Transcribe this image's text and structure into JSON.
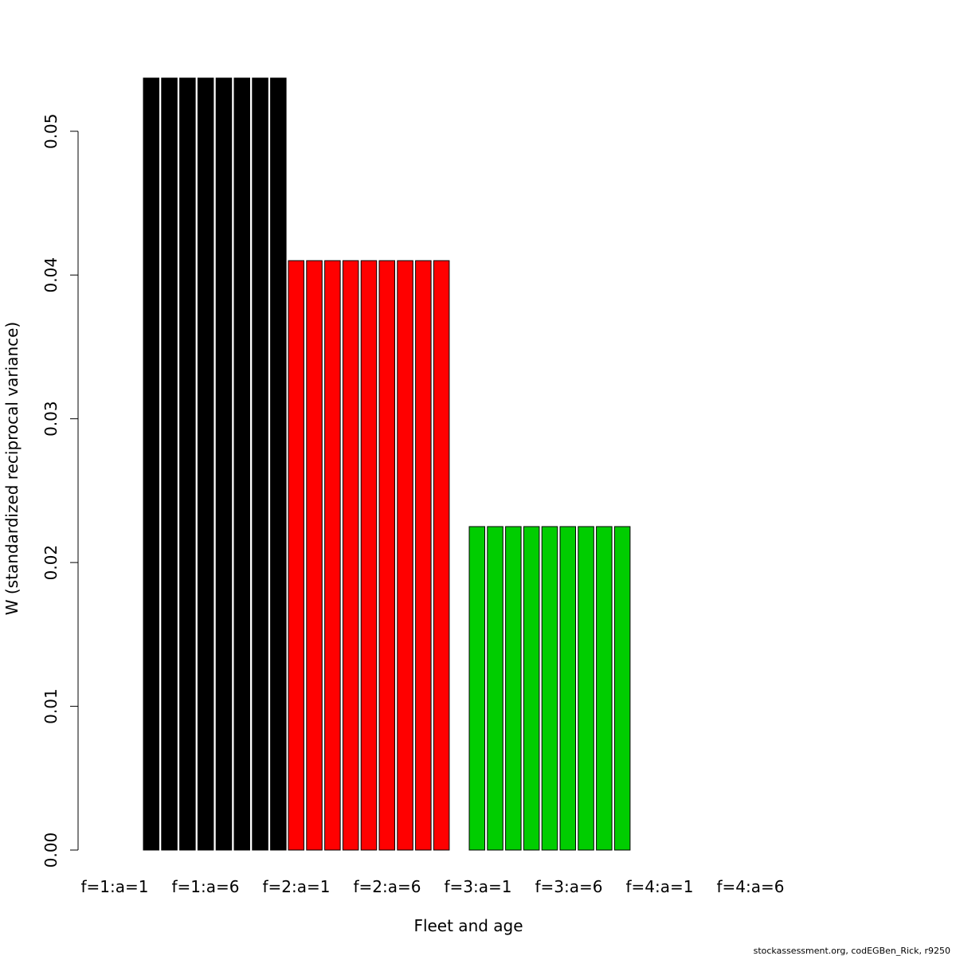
{
  "chart_data": {
    "type": "bar",
    "title": "",
    "xlabel": "Fleet and age",
    "ylabel": "W (standardized reciprocal variance)",
    "ylim": [
      0,
      0.0537
    ],
    "grid": false,
    "legend": "none",
    "yticks": [
      "0.00",
      "0.01",
      "0.02",
      "0.03",
      "0.04",
      "0.05"
    ],
    "yticks_values": [
      0,
      0.01,
      0.02,
      0.03,
      0.04,
      0.05
    ],
    "xtick_labels": [
      "f=1:a=1",
      "f=1:a=6",
      "f=2:a=1",
      "f=2:a=6",
      "f=3:a=1",
      "f=3:a=6",
      "f=4:a=1",
      "f=4:a=6"
    ],
    "groups": [
      {
        "fleet": 1,
        "color": "#000000",
        "values": [
          0.0537,
          0.0537,
          0.0537,
          0.0537,
          0.0537,
          0.0537,
          0.0537,
          0.0537
        ]
      },
      {
        "fleet": 2,
        "color": "#ff0000",
        "values": [
          0.041,
          0.041,
          0.041,
          0.041,
          0.041,
          0.041,
          0.041,
          0.041,
          0.041
        ]
      },
      {
        "fleet": 3,
        "color": "#00cd00",
        "values": [
          0.0225,
          0.0225,
          0.0225,
          0.0225,
          0.0225,
          0.0225,
          0.0225,
          0.0225,
          0.0225
        ]
      },
      {
        "fleet": 4,
        "color": "#0000ff",
        "values": []
      }
    ]
  },
  "footer": "stockassessment.org, codEGBen_Rick, r9250"
}
